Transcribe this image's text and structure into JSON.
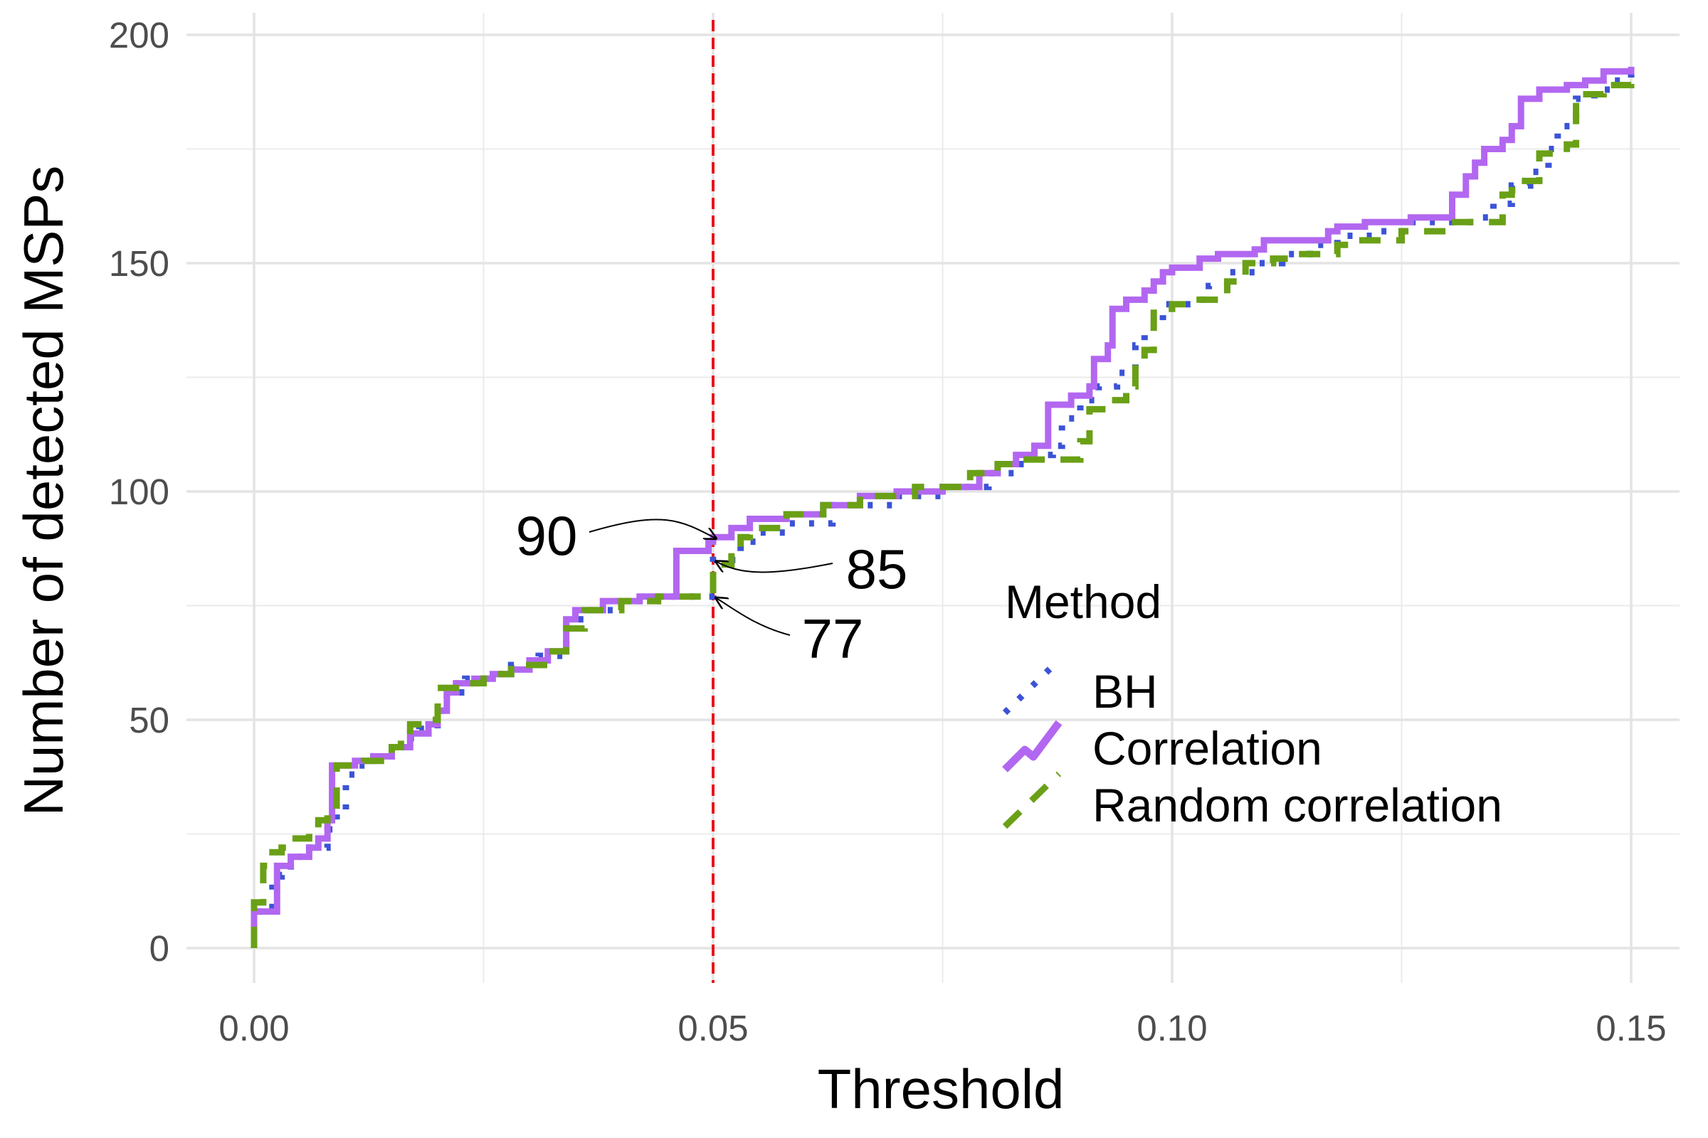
{
  "chart_data": {
    "type": "line",
    "xlabel": "Threshold",
    "ylabel": "Number of detected MSPs",
    "xlim": [
      -0.007,
      0.155
    ],
    "ylim": [
      -9,
      203
    ],
    "x_ticks": [
      0.0,
      0.05,
      0.1,
      0.15
    ],
    "x_tick_labels": [
      "0.00",
      "0.05",
      "0.10",
      "0.15"
    ],
    "y_ticks": [
      0,
      50,
      100,
      150,
      200
    ],
    "y_tick_labels": [
      "0",
      "50",
      "100",
      "150",
      "200"
    ],
    "grid": true,
    "legend": {
      "title": "Method",
      "position": "right"
    },
    "reference_line": {
      "x": 0.05,
      "color": "#e8141c",
      "style": "dashed"
    },
    "annotations": [
      {
        "label": "90",
        "x": 0.05,
        "y": 90
      },
      {
        "label": "85",
        "x": 0.05,
        "y": 85
      },
      {
        "label": "77",
        "x": 0.05,
        "y": 77
      }
    ],
    "series": [
      {
        "name": "BH",
        "color": "#3b53d6",
        "style": "dotted",
        "points": [
          [
            0,
            0
          ],
          [
            0,
            8
          ],
          [
            0.002,
            8
          ],
          [
            0.002,
            14
          ],
          [
            0.003,
            16
          ],
          [
            0.004,
            20
          ],
          [
            0.006,
            22
          ],
          [
            0.008,
            26
          ],
          [
            0.009,
            30
          ],
          [
            0.01,
            38
          ],
          [
            0.011,
            40
          ],
          [
            0.013,
            42
          ],
          [
            0.015,
            44
          ],
          [
            0.016,
            46
          ],
          [
            0.018,
            48
          ],
          [
            0.02,
            52
          ],
          [
            0.021,
            56
          ],
          [
            0.023,
            59
          ],
          [
            0.026,
            60
          ],
          [
            0.028,
            62
          ],
          [
            0.031,
            64
          ],
          [
            0.034,
            72
          ],
          [
            0.036,
            74
          ],
          [
            0.04,
            76
          ],
          [
            0.045,
            77
          ],
          [
            0.05,
            77
          ],
          [
            0.05,
            85
          ],
          [
            0.052,
            85
          ],
          [
            0.053,
            89
          ],
          [
            0.055,
            91
          ],
          [
            0.058,
            93
          ],
          [
            0.063,
            97
          ],
          [
            0.07,
            99
          ],
          [
            0.075,
            101
          ],
          [
            0.08,
            104
          ],
          [
            0.083,
            106
          ],
          [
            0.085,
            108
          ],
          [
            0.087,
            110
          ],
          [
            0.088,
            116
          ],
          [
            0.09,
            120
          ],
          [
            0.092,
            123
          ],
          [
            0.094,
            126
          ],
          [
            0.096,
            132
          ],
          [
            0.097,
            136
          ],
          [
            0.099,
            141
          ],
          [
            0.102,
            142
          ],
          [
            0.104,
            145
          ],
          [
            0.106,
            148
          ],
          [
            0.109,
            150
          ],
          [
            0.112,
            152
          ],
          [
            0.115,
            154
          ],
          [
            0.118,
            156
          ],
          [
            0.122,
            157
          ],
          [
            0.126,
            159
          ],
          [
            0.133,
            160
          ],
          [
            0.135,
            163
          ],
          [
            0.137,
            167
          ],
          [
            0.139,
            170
          ],
          [
            0.141,
            175
          ],
          [
            0.142,
            180
          ],
          [
            0.144,
            186
          ],
          [
            0.146,
            188
          ],
          [
            0.148,
            190
          ],
          [
            0.15,
            192
          ]
        ]
      },
      {
        "name": "Correlation",
        "color": "#b267f0",
        "style": "solid",
        "points": [
          [
            0,
            0
          ],
          [
            0,
            8
          ],
          [
            0.0025,
            8
          ],
          [
            0.0025,
            18
          ],
          [
            0.004,
            20
          ],
          [
            0.006,
            22
          ],
          [
            0.007,
            24
          ],
          [
            0.008,
            28
          ],
          [
            0.0085,
            40
          ],
          [
            0.011,
            41
          ],
          [
            0.013,
            42
          ],
          [
            0.015,
            44
          ],
          [
            0.017,
            47
          ],
          [
            0.019,
            49
          ],
          [
            0.02,
            52
          ],
          [
            0.021,
            56
          ],
          [
            0.022,
            58
          ],
          [
            0.024,
            59
          ],
          [
            0.026,
            60
          ],
          [
            0.028,
            61
          ],
          [
            0.03,
            63
          ],
          [
            0.032,
            65
          ],
          [
            0.034,
            72
          ],
          [
            0.035,
            74
          ],
          [
            0.038,
            76
          ],
          [
            0.042,
            77
          ],
          [
            0.046,
            77
          ],
          [
            0.046,
            87
          ],
          [
            0.0495,
            87
          ],
          [
            0.0495,
            89
          ],
          [
            0.05,
            90
          ],
          [
            0.052,
            92
          ],
          [
            0.054,
            94
          ],
          [
            0.058,
            95
          ],
          [
            0.062,
            97
          ],
          [
            0.066,
            99
          ],
          [
            0.07,
            100
          ],
          [
            0.075,
            101
          ],
          [
            0.079,
            104
          ],
          [
            0.081,
            106
          ],
          [
            0.083,
            108
          ],
          [
            0.085,
            110
          ],
          [
            0.0865,
            110
          ],
          [
            0.0865,
            119
          ],
          [
            0.089,
            121
          ],
          [
            0.091,
            123
          ],
          [
            0.0915,
            129
          ],
          [
            0.093,
            132
          ],
          [
            0.0935,
            140
          ],
          [
            0.095,
            142
          ],
          [
            0.097,
            144
          ],
          [
            0.098,
            146
          ],
          [
            0.099,
            148
          ],
          [
            0.1,
            149
          ],
          [
            0.103,
            151
          ],
          [
            0.105,
            152
          ],
          [
            0.109,
            153
          ],
          [
            0.11,
            155
          ],
          [
            0.117,
            157
          ],
          [
            0.118,
            158
          ],
          [
            0.121,
            159
          ],
          [
            0.126,
            160
          ],
          [
            0.13,
            160
          ],
          [
            0.1305,
            165
          ],
          [
            0.132,
            169
          ],
          [
            0.133,
            172
          ],
          [
            0.134,
            175
          ],
          [
            0.136,
            177
          ],
          [
            0.137,
            180
          ],
          [
            0.138,
            186
          ],
          [
            0.14,
            188
          ],
          [
            0.143,
            189
          ],
          [
            0.145,
            190
          ],
          [
            0.147,
            192
          ],
          [
            0.15,
            193
          ]
        ]
      },
      {
        "name": "Random correlation",
        "color": "#6aa016",
        "style": "dashed",
        "points": [
          [
            0,
            0
          ],
          [
            0,
            10
          ],
          [
            0.001,
            18
          ],
          [
            0.002,
            21
          ],
          [
            0.003,
            22
          ],
          [
            0.004,
            24
          ],
          [
            0.006,
            26
          ],
          [
            0.007,
            28
          ],
          [
            0.008,
            30
          ],
          [
            0.009,
            40
          ],
          [
            0.012,
            41
          ],
          [
            0.015,
            44
          ],
          [
            0.016,
            46
          ],
          [
            0.017,
            49
          ],
          [
            0.019,
            50
          ],
          [
            0.02,
            57
          ],
          [
            0.022,
            58
          ],
          [
            0.025,
            60
          ],
          [
            0.028,
            62
          ],
          [
            0.032,
            65
          ],
          [
            0.034,
            70
          ],
          [
            0.036,
            74
          ],
          [
            0.04,
            76
          ],
          [
            0.044,
            77
          ],
          [
            0.05,
            77
          ],
          [
            0.05,
            84
          ],
          [
            0.052,
            87
          ],
          [
            0.053,
            90
          ],
          [
            0.054,
            92
          ],
          [
            0.058,
            95
          ],
          [
            0.062,
            97
          ],
          [
            0.066,
            99
          ],
          [
            0.07,
            99
          ],
          [
            0.072,
            101
          ],
          [
            0.075,
            101
          ],
          [
            0.078,
            104
          ],
          [
            0.081,
            106
          ],
          [
            0.083,
            107
          ],
          [
            0.09,
            107
          ],
          [
            0.09,
            111
          ],
          [
            0.091,
            118
          ],
          [
            0.093,
            120
          ],
          [
            0.095,
            123
          ],
          [
            0.096,
            128
          ],
          [
            0.097,
            131
          ],
          [
            0.098,
            140
          ],
          [
            0.1,
            141
          ],
          [
            0.103,
            142
          ],
          [
            0.106,
            146
          ],
          [
            0.108,
            150
          ],
          [
            0.111,
            151
          ],
          [
            0.113,
            152
          ],
          [
            0.118,
            154
          ],
          [
            0.12,
            155
          ],
          [
            0.125,
            157
          ],
          [
            0.13,
            159
          ],
          [
            0.136,
            160
          ],
          [
            0.136,
            165
          ],
          [
            0.137,
            166
          ],
          [
            0.138,
            168
          ],
          [
            0.14,
            174
          ],
          [
            0.143,
            176
          ],
          [
            0.144,
            187
          ],
          [
            0.147,
            189
          ],
          [
            0.15,
            191
          ]
        ]
      }
    ]
  }
}
